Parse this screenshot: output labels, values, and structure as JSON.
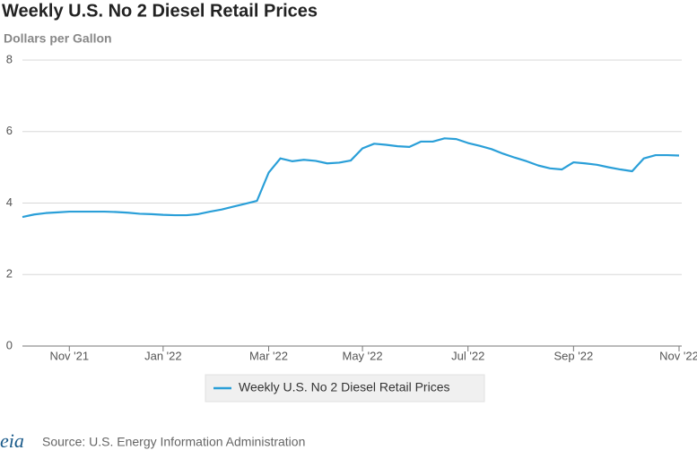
{
  "chart_data": {
    "type": "line",
    "title": "Weekly U.S. No 2 Diesel Retail Prices",
    "subtitle": "Dollars per Gallon",
    "source": "Source: U.S. Energy Information Administration",
    "logo": "eia",
    "categories": [
      null,
      null,
      null,
      null,
      "Nov '21",
      null,
      null,
      null,
      null,
      null,
      null,
      null,
      "Jan '22",
      null,
      null,
      null,
      null,
      null,
      null,
      null,
      null,
      "Mar '22",
      null,
      null,
      null,
      null,
      null,
      null,
      null,
      "May '22",
      null,
      null,
      null,
      null,
      null,
      null,
      null,
      null,
      "Jul '22",
      null,
      null,
      null,
      null,
      null,
      null,
      null,
      null,
      "Sep '22",
      null,
      null,
      null,
      null,
      null,
      null,
      null,
      null,
      "Nov '22"
    ],
    "series": [
      {
        "name": "Weekly U.S. No 2 Diesel Retail Prices",
        "color": "#2a9fd8",
        "values": [
          3.61,
          3.68,
          3.72,
          3.74,
          3.76,
          3.76,
          3.76,
          3.76,
          3.75,
          3.73,
          3.7,
          3.69,
          3.67,
          3.66,
          3.66,
          3.69,
          3.76,
          3.82,
          3.9,
          3.98,
          4.06,
          4.85,
          5.25,
          5.17,
          5.21,
          5.18,
          5.11,
          5.13,
          5.19,
          5.53,
          5.66,
          5.63,
          5.59,
          5.57,
          5.72,
          5.72,
          5.81,
          5.79,
          5.68,
          5.6,
          5.51,
          5.38,
          5.27,
          5.17,
          5.05,
          4.97,
          4.94,
          5.14,
          5.11,
          5.07,
          5.0,
          4.94,
          4.89,
          5.25,
          5.34,
          5.34,
          5.33
        ]
      }
    ],
    "ylim": [
      0,
      8
    ],
    "yticks": [
      0,
      2,
      4,
      6,
      8
    ],
    "grid": true,
    "legend": "bottom"
  }
}
